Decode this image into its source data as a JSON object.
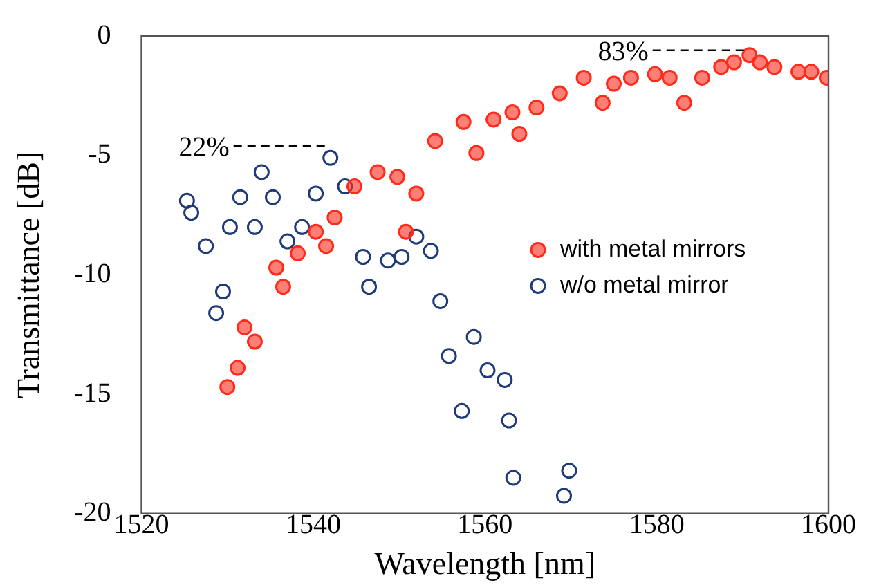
{
  "chart_data": {
    "type": "scatter",
    "xlabel": "Wavelength [nm]",
    "ylabel": "Transmittance [dB]",
    "xlim": [
      1520,
      1600
    ],
    "xticks": [
      1520,
      1540,
      1560,
      1580,
      1600
    ],
    "ylim": [
      -20,
      0
    ],
    "yticks": [
      -20,
      -15,
      -10,
      -5,
      0
    ],
    "grid": false,
    "legend": "right",
    "marker": "circle",
    "annotations": [
      {
        "text": "22%",
        "x": 1542,
        "y": -4.6
      },
      {
        "text": "83%",
        "x": 1590.8,
        "y": -0.6
      }
    ],
    "series": [
      {
        "name": "with metal mirrors",
        "color": "#ff2a1a",
        "x": [
          1530,
          1531.2,
          1532,
          1533.2,
          1535.7,
          1536.5,
          1538.2,
          1540.3,
          1541.5,
          1542.5,
          1544.8,
          1547.5,
          1549.8,
          1550.8,
          1552,
          1554.2,
          1557.5,
          1559,
          1561,
          1563.2,
          1564,
          1566,
          1568.7,
          1571.5,
          1573.7,
          1575,
          1577,
          1579.8,
          1581.5,
          1583.2,
          1585.3,
          1587.5,
          1589,
          1590.8,
          1592,
          1593.7,
          1596.5,
          1598,
          1599.8
        ],
        "values": [
          -14.7,
          -13.9,
          -12.2,
          -12.8,
          -9.7,
          -10.5,
          -9.1,
          -8.2,
          -8.8,
          -7.6,
          -6.3,
          -5.7,
          -5.9,
          -8.2,
          -6.6,
          -4.4,
          -3.6,
          -4.9,
          -3.5,
          -3.2,
          -4.1,
          -3,
          -2.4,
          -1.75,
          -2.8,
          -2,
          -1.75,
          -1.6,
          -1.75,
          -2.8,
          -1.75,
          -1.3,
          -1.1,
          -0.8,
          -1.1,
          -1.3,
          -1.5,
          -1.5,
          -1.75
        ]
      },
      {
        "name": "w/o metal mirror",
        "color": "#1f3a78",
        "x": [
          1525.3,
          1525.8,
          1527.5,
          1528.7,
          1529.5,
          1530.3,
          1531.5,
          1533.2,
          1534,
          1535.3,
          1537,
          1538.7,
          1540.3,
          1542,
          1543.7,
          1545.8,
          1546.5,
          1548.7,
          1550.3,
          1552,
          1553.7,
          1554.8,
          1555.8,
          1557.3,
          1558.7,
          1560.3,
          1562.3,
          1562.8,
          1563.3,
          1569.2,
          1569.8
        ],
        "values": [
          -6.9,
          -7.4,
          -8.8,
          -11.6,
          -10.7,
          -8,
          -6.75,
          -8,
          -5.7,
          -6.75,
          -8.6,
          -8,
          -6.6,
          -5.1,
          -6.3,
          -9.25,
          -10.5,
          -9.4,
          -9.25,
          -8.4,
          -9,
          -11.1,
          -13.4,
          -15.7,
          -12.6,
          -14,
          -14.4,
          -16.1,
          -18.5,
          -19.25,
          -18.2
        ]
      }
    ]
  }
}
